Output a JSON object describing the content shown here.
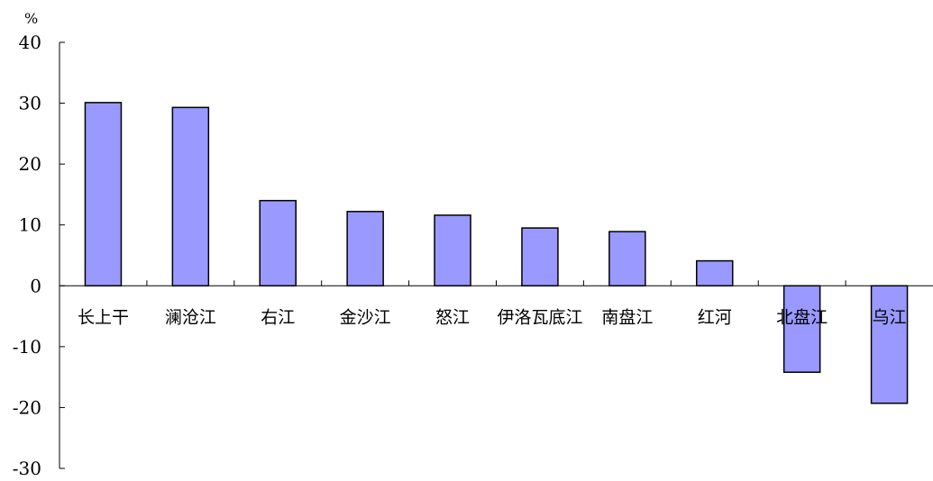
{
  "chart_data": {
    "type": "bar",
    "title": "",
    "xlabel": "",
    "ylabel": "%",
    "ylim": [
      -30,
      40
    ],
    "yticks": [
      40,
      30,
      20,
      10,
      0,
      -10,
      -20,
      -30
    ],
    "ytick_labels": [
      "40",
      "30",
      "20",
      "10",
      "0",
      "-10",
      "-20",
      "-30"
    ],
    "categories": [
      "长上干",
      "澜沧江",
      "右江",
      "金沙江",
      "怒江",
      "伊洛瓦底江",
      "南盘江",
      "红河",
      "北盘江",
      "乌江"
    ],
    "values": [
      30.1,
      29.3,
      14.0,
      12.2,
      11.6,
      9.5,
      8.9,
      4.1,
      -14.2,
      -19.3
    ],
    "bar_color": "#9999ff",
    "bar_edge_color": "#000000",
    "grid": false,
    "legend": "none"
  }
}
